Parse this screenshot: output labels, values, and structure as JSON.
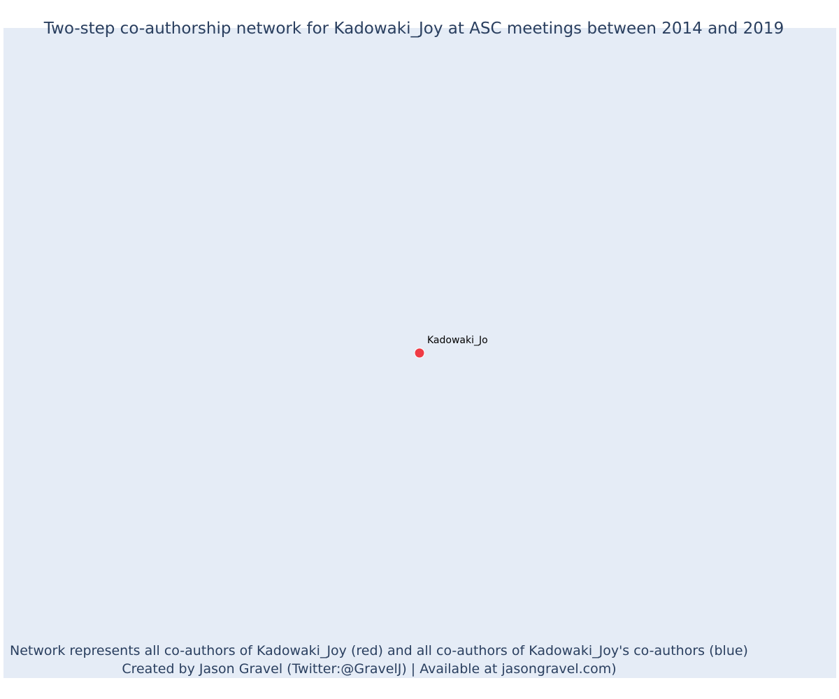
{
  "title": "Two-step co-authorship network for Kadowaki_Joy at ASC meetings between 2014 and 2019",
  "caption": {
    "line1": "Network represents all co-authors of Kadowaki_Joy (red) and all co-authors of Kadowaki_Joy's co-authors (blue)",
    "line2": "Created by Jason Gravel (Twitter:@GravelJ) | Available at jasongravel.com)"
  },
  "colors": {
    "plot_background": "#e5ecf6",
    "focal_node": "#ef3b45",
    "text": "#2a3f5f"
  },
  "network": {
    "nodes": [
      {
        "id": "Kadowaki_Joy",
        "label": "Kadowaki_Jo",
        "role": "focal",
        "color": "#ef3b45"
      }
    ],
    "edges": []
  }
}
